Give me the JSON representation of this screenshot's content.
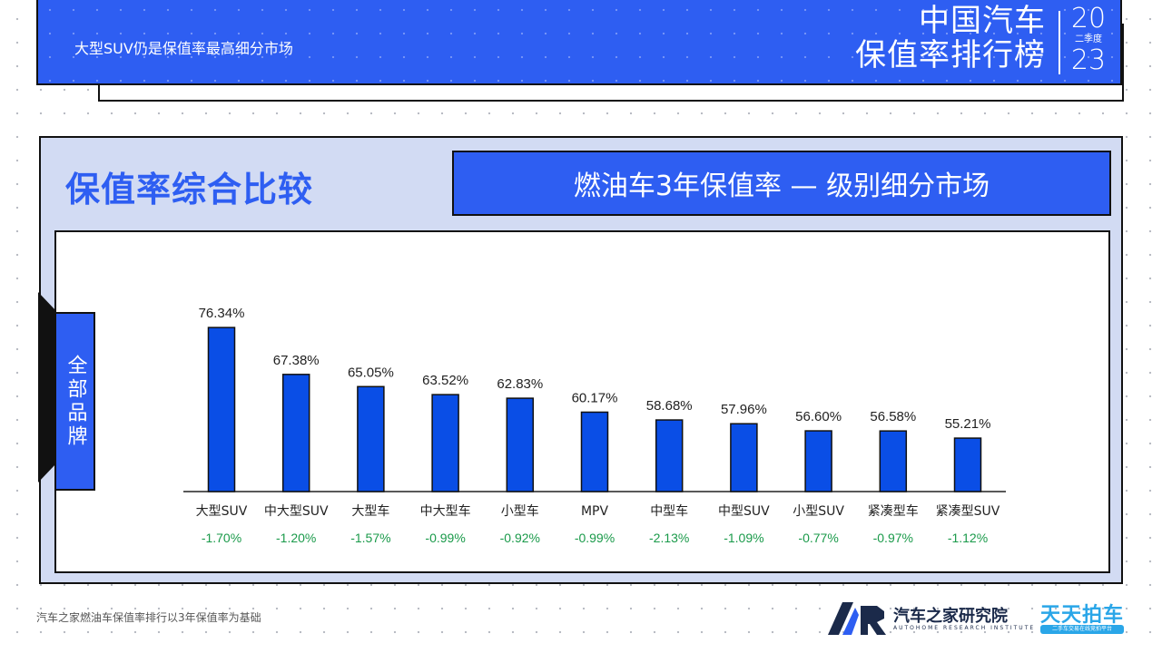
{
  "header": {
    "subtitle": "大型SUV仍是保值率最高细分市场",
    "title_line1": "中国汽车",
    "title_line2": "保值率排行榜",
    "year_top": "20",
    "quarter": "二季度",
    "year_bottom": "23"
  },
  "section": {
    "title": "保值率综合比较",
    "subtitle": "燃油车3年保值率 — 级别细分市场",
    "tab_label": "全部品牌"
  },
  "chart_data": {
    "type": "bar",
    "categories": [
      "大型SUV",
      "中大型SUV",
      "大型车",
      "中大型车",
      "小型车",
      "MPV",
      "中型车",
      "中型SUV",
      "小型SUV",
      "紧凑型车",
      "紧凑型SUV"
    ],
    "values": [
      76.34,
      67.38,
      65.05,
      63.52,
      62.83,
      60.17,
      58.68,
      57.96,
      56.6,
      56.58,
      55.21
    ],
    "value_labels": [
      "76.34%",
      "67.38%",
      "65.05%",
      "63.52%",
      "62.83%",
      "60.17%",
      "58.68%",
      "57.96%",
      "56.60%",
      "56.58%",
      "55.21%"
    ],
    "changes": [
      "-1.70%",
      "-1.20%",
      "-1.57%",
      "-0.99%",
      "-0.92%",
      "-0.99%",
      "-2.13%",
      "-1.09%",
      "-0.77%",
      "-0.97%",
      "-1.12%"
    ],
    "ylim": [
      45,
      80
    ],
    "bar_color": "#0a4ee6",
    "change_color": "#1a9a4a",
    "grid": false,
    "legend": "none"
  },
  "footer": {
    "note": "汽车之家燃油车保值率排行以3年保值率为基础",
    "logo1_text": "汽车之家研究院",
    "logo1_en": "AUTOHOME RESEARCH INSTITUTE",
    "logo2_text": "天天拍车",
    "logo2_sub": "二手车交易在线竞拍平台"
  }
}
